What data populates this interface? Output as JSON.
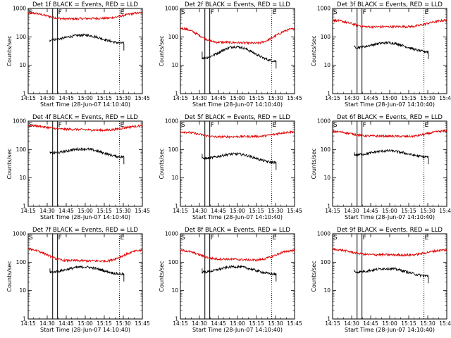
{
  "chart_data": {
    "type": "line",
    "panels": [
      {
        "title": "Det  1f BLACK = Events, RED = LLD",
        "red": [
          700,
          430,
          450,
          700
        ],
        "black_start": 65,
        "black": [
          80,
          115,
          60
        ]
      },
      {
        "title": "Det  2f BLACK = Events, RED = LLD",
        "red": [
          200,
          65,
          60,
          190
        ],
        "black_start": 30,
        "black": [
          18,
          45,
          14
        ]
      },
      {
        "title": "Det  3f BLACK = Events, RED = LLD",
        "red": [
          380,
          225,
          230,
          380
        ],
        "black_start": 50,
        "black": [
          42,
          62,
          30
        ]
      },
      {
        "title": "Det  4f BLACK = Events, RED = LLD",
        "red": [
          700,
          520,
          480,
          680
        ],
        "black_start": 85,
        "black": [
          75,
          105,
          55
        ]
      },
      {
        "title": "Det  5f BLACK = Events, RED = LLD",
        "red": [
          420,
          280,
          290,
          420
        ],
        "black_start": 70,
        "black": [
          48,
          70,
          35
        ]
      },
      {
        "title": "Det  6f BLACK = Events, RED = LLD",
        "red": [
          430,
          300,
          290,
          450
        ],
        "black_start": 80,
        "black": [
          65,
          90,
          55
        ]
      },
      {
        "title": "Det  7f BLACK = Events, RED = LLD",
        "red": [
          290,
          115,
          110,
          260
        ],
        "black_start": 60,
        "black": [
          45,
          68,
          38
        ]
      },
      {
        "title": "Det  8f BLACK = Events, RED = LLD",
        "red": [
          260,
          130,
          120,
          260
        ],
        "black_start": 60,
        "black": [
          45,
          70,
          38
        ]
      },
      {
        "title": "Det  9f BLACK = Events, RED = LLD",
        "red": [
          280,
          185,
          180,
          270
        ],
        "black_start": 55,
        "black": [
          45,
          60,
          33
        ]
      }
    ],
    "x_ticks": [
      "14:15",
      "14:30",
      "14:45",
      "15:00",
      "15:15",
      "15:30",
      "15:45"
    ],
    "x_range_minutes": [
      0,
      105
    ],
    "y_ticks": [
      "1",
      "10",
      "100",
      "1000"
    ],
    "ylim": [
      1,
      1000
    ],
    "y_scale": "log",
    "xlabel": "Start Time (28-Jun-07 14:10:40)",
    "ylabel": "Counts/sec",
    "flags": [
      "S",
      "F",
      "E"
    ],
    "flag_lines_minutes": {
      "solid": [
        22.5,
        27
      ],
      "dotted": [
        84
      ],
      "black_end": 88
    },
    "colors": {
      "events": "#000000",
      "lld": "#e00000"
    }
  }
}
